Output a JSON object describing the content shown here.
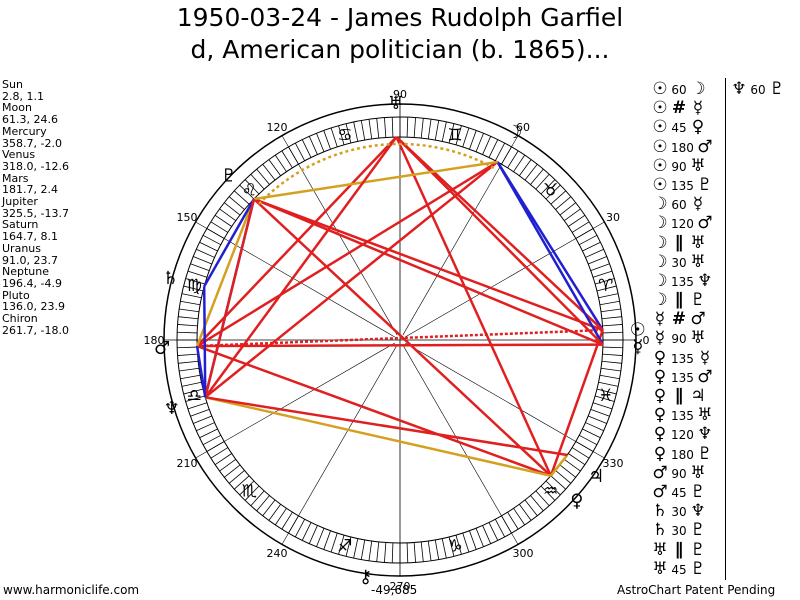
{
  "title_line1": "1950-03-24 - James Rudolph Garfiel",
  "title_line2": "d, American politician (b. 1865)...",
  "planets": [
    {
      "name": "Sun",
      "values": "2.8, 1.1",
      "lon": 2.8,
      "glyph": "☉"
    },
    {
      "name": "Moon",
      "values": "61.3, 24.6",
      "lon": 61.3,
      "glyph": "☽"
    },
    {
      "name": "Mercury",
      "values": "358.7, -2.0",
      "lon": 358.7,
      "glyph": "☿"
    },
    {
      "name": "Venus",
      "values": "318.0, -12.6",
      "lon": 318.0,
      "glyph": "♀"
    },
    {
      "name": "Mars",
      "values": "181.7, 2.4",
      "lon": 181.7,
      "glyph": "♂"
    },
    {
      "name": "Jupiter",
      "values": "325.5, -13.7",
      "lon": 325.5,
      "glyph": "♃"
    },
    {
      "name": "Saturn",
      "values": "164.7, 8.1",
      "lon": 164.7,
      "glyph": "♄"
    },
    {
      "name": "Uranus",
      "values": "91.0, 23.7",
      "lon": 91.0,
      "glyph": "♅"
    },
    {
      "name": "Neptune",
      "values": "196.4, -4.9",
      "lon": 196.4,
      "glyph": "♆"
    },
    {
      "name": "Pluto",
      "values": "136.0, 23.9",
      "lon": 136.0,
      "glyph": "♇"
    },
    {
      "name": "Chiron",
      "values": "261.7, -18.0",
      "lon": 261.7,
      "glyph": "⚷"
    }
  ],
  "degree_labels": [
    "0",
    "30",
    "60",
    "90",
    "120",
    "150",
    "180",
    "210",
    "240",
    "270",
    "300",
    "330"
  ],
  "zodiac_signs": [
    "♈",
    "♉",
    "♊",
    "♋",
    "♌",
    "♍",
    "♎",
    "♏",
    "♐",
    "♑",
    "♒",
    "♓"
  ],
  "aspects_col1": [
    {
      "p1": "☉",
      "asp": "60",
      "p2": "☽"
    },
    {
      "p1": "☉",
      "asp": "#",
      "p2": "☿"
    },
    {
      "p1": "☉",
      "asp": "45",
      "p2": "♀"
    },
    {
      "p1": "☉",
      "asp": "180",
      "p2": "♂"
    },
    {
      "p1": "☉",
      "asp": "90",
      "p2": "♅"
    },
    {
      "p1": "☉",
      "asp": "135",
      "p2": "♇"
    },
    {
      "p1": "☽",
      "asp": "60",
      "p2": "☿"
    },
    {
      "p1": "☽",
      "asp": "120",
      "p2": "♂"
    },
    {
      "p1": "☽",
      "asp": "∥",
      "p2": "♅"
    },
    {
      "p1": "☽",
      "asp": "30",
      "p2": "♅"
    },
    {
      "p1": "☽",
      "asp": "135",
      "p2": "♆"
    },
    {
      "p1": "☽",
      "asp": "∥",
      "p2": "♇"
    },
    {
      "p1": "☿",
      "asp": "#",
      "p2": "♂"
    },
    {
      "p1": "☿",
      "asp": "90",
      "p2": "♅"
    },
    {
      "p1": "♀",
      "asp": "135",
      "p2": "☿"
    },
    {
      "p1": "♀",
      "asp": "135",
      "p2": "♂"
    },
    {
      "p1": "♀",
      "asp": "∥",
      "p2": "♃"
    },
    {
      "p1": "♀",
      "asp": "135",
      "p2": "♅"
    },
    {
      "p1": "♀",
      "asp": "120",
      "p2": "♆"
    },
    {
      "p1": "♀",
      "asp": "180",
      "p2": "♇"
    },
    {
      "p1": "♂",
      "asp": "90",
      "p2": "♅"
    },
    {
      "p1": "♂",
      "asp": "45",
      "p2": "♇"
    },
    {
      "p1": "♄",
      "asp": "30",
      "p2": "♆"
    },
    {
      "p1": "♄",
      "asp": "30",
      "p2": "♇"
    },
    {
      "p1": "♅",
      "asp": "∥",
      "p2": "♇"
    },
    {
      "p1": "♅",
      "asp": "45",
      "p2": "♇"
    }
  ],
  "aspects_col2": [
    {
      "p1": "♆",
      "asp": "60",
      "p2": "♇"
    }
  ],
  "footer_left": "www.harmoniclife.com",
  "footer_right": "AstroChart Patent Pending",
  "coordinate_readout": "-49,685",
  "colors": {
    "hard": "#e02020",
    "soft": "#2020d0",
    "minor": "#d4a020"
  }
}
